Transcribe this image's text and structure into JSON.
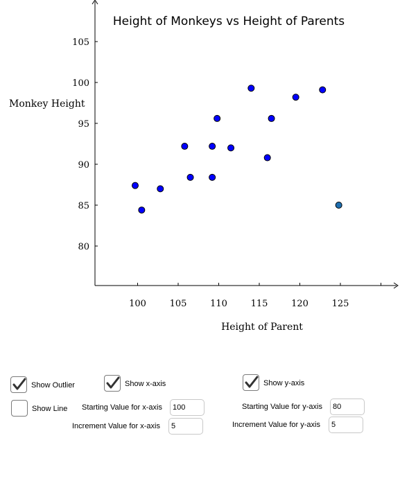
{
  "chart_data": {
    "type": "scatter",
    "title": "Height of Monkeys vs Height of Parents",
    "xlabel": "Height of Parent",
    "ylabel": "Monkey Height",
    "xlim": [
      95,
      128
    ],
    "ylim": [
      75,
      110
    ],
    "x_ticks": [
      100,
      105,
      110,
      115,
      120,
      125
    ],
    "y_ticks": [
      80,
      85,
      90,
      95,
      100,
      105
    ],
    "grid": false,
    "points": [
      {
        "x": 99.7,
        "y": 87.4
      },
      {
        "x": 100.5,
        "y": 84.4
      },
      {
        "x": 102.8,
        "y": 87.0
      },
      {
        "x": 105.8,
        "y": 92.2
      },
      {
        "x": 106.5,
        "y": 88.4
      },
      {
        "x": 109.2,
        "y": 92.2
      },
      {
        "x": 109.2,
        "y": 88.4
      },
      {
        "x": 109.8,
        "y": 95.6
      },
      {
        "x": 111.5,
        "y": 92.0
      },
      {
        "x": 114.0,
        "y": 99.3
      },
      {
        "x": 116.0,
        "y": 90.8
      },
      {
        "x": 116.5,
        "y": 95.6
      },
      {
        "x": 119.5,
        "y": 98.2
      },
      {
        "x": 122.8,
        "y": 99.1
      }
    ],
    "outlier": {
      "x": 124.8,
      "y": 85.0
    },
    "point_color": "#0000ff",
    "outlier_color": "#1f6fb0"
  },
  "controls": {
    "show_outlier": {
      "label": "Show Outlier",
      "checked": true
    },
    "show_line": {
      "label": "Show Line",
      "checked": false
    },
    "show_x_axis": {
      "label": "Show x-axis",
      "checked": true
    },
    "show_y_axis": {
      "label": "Show y-axis",
      "checked": true
    },
    "start_x": {
      "label": "Starting Value for x-axis",
      "value": "100"
    },
    "inc_x": {
      "label": "Increment Value for x-axis",
      "value": "5"
    },
    "start_y": {
      "label": "Starting Value for y-axis",
      "value": "80"
    },
    "inc_y": {
      "label": "Increment Value for y-axis",
      "value": "5"
    }
  }
}
